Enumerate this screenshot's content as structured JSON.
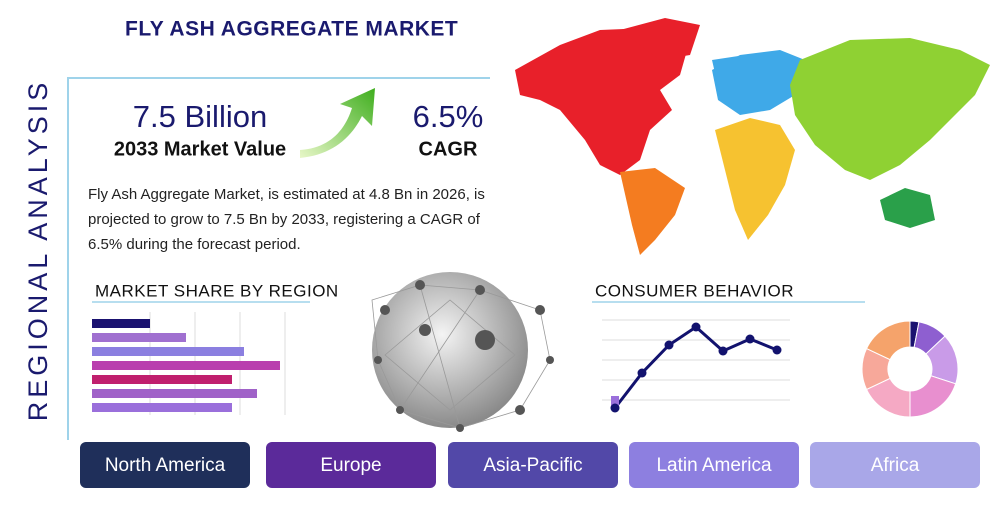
{
  "header": {
    "title": "FLY ASH AGGREGATE MARKET"
  },
  "side_label": "REGIONAL ANALYSIS",
  "stats": [
    {
      "value": "7.5 Billion",
      "label": "2033 Market Value"
    },
    {
      "value": "6.5%",
      "label": "CAGR"
    }
  ],
  "description": "Fly Ash Aggregate Market, is estimated at 4.8 Bn in 2026, is projected to grow to 7.5 Bn by 2033, registering a CAGR of 6.5% during the forecast period.",
  "market_share": {
    "title": "MARKET SHARE BY REGION",
    "values": [
      58,
      94,
      152,
      188,
      140,
      165,
      140
    ],
    "colors": [
      "#1a1270",
      "#a070d0",
      "#8b7fe0",
      "#b93fae",
      "#c01f6e",
      "#a062c8",
      "#9a6fdb"
    ]
  },
  "consumer_behavior": {
    "title": "CONSUMER BEHAVIOR",
    "values": [
      10,
      45,
      73,
      91,
      67,
      79,
      68
    ],
    "color": "#12126e",
    "donut": {
      "values": [
        3,
        10,
        17,
        20,
        18,
        14,
        18
      ],
      "colors": [
        "#1a1270",
        "#8e5fd0",
        "#c99be8",
        "#e88fcf",
        "#f5a9c4",
        "#f7a89a",
        "#f5a36b"
      ]
    }
  },
  "regions": [
    {
      "label": "North America",
      "color": "#1f2f5a"
    },
    {
      "label": "Europe",
      "color": "#5b2a9a"
    },
    {
      "label": "Asia-Pacific",
      "color": "#5248a8"
    },
    {
      "label": "Latin America",
      "color": "#8d7fe0"
    },
    {
      "label": "Africa",
      "color": "#a9a7e8"
    }
  ]
}
